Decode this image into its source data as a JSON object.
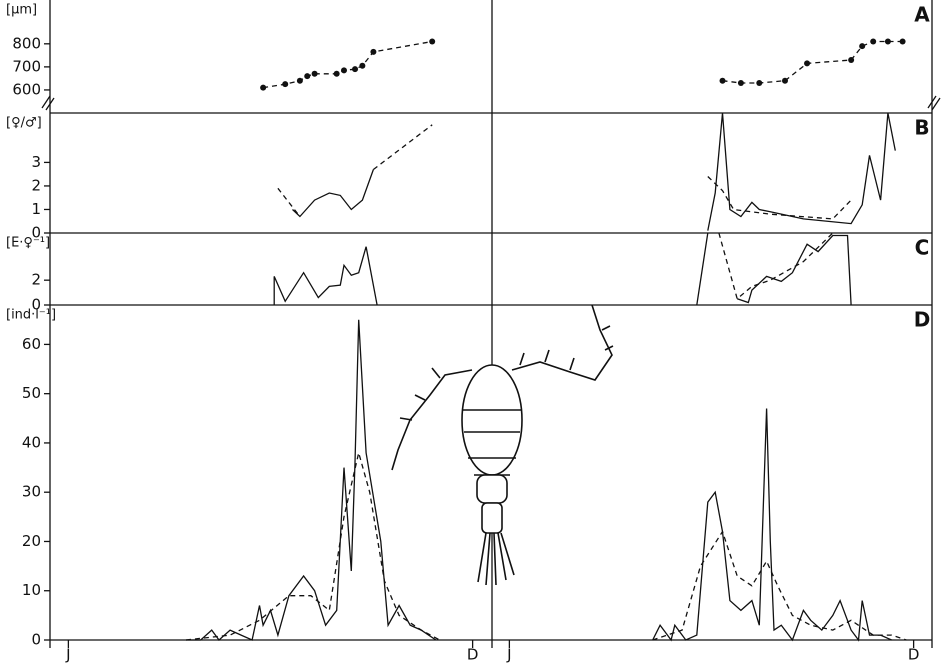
{
  "chart_data": [
    {
      "type": "line",
      "label": "A",
      "ylabel": "[μm]",
      "ylim": [
        500,
        990
      ],
      "yticks": [
        600,
        700,
        800
      ],
      "markers": true,
      "series": [
        {
          "color": "#111",
          "dash": true,
          "x": [
            5.8,
            6.4,
            6.8,
            7.0,
            7.2,
            7.8,
            8.0,
            8.3,
            8.5,
            8.8,
            10.4,
            null,
            18.3,
            18.8,
            19.3,
            20.0,
            20.6,
            21.8,
            22.1,
            22.4,
            22.8,
            23.2
          ],
          "values": [
            610,
            625,
            640,
            660,
            670,
            670,
            685,
            690,
            705,
            765,
            810,
            null,
            640,
            630,
            630,
            640,
            715,
            730,
            790,
            810,
            810,
            810
          ]
        }
      ]
    },
    {
      "type": "line",
      "label": "B",
      "ylabel": "[♀/♂]",
      "ylim": [
        0,
        5.1
      ],
      "yticks": [
        0,
        1,
        2,
        3
      ],
      "series": [
        {
          "color": "#111",
          "dash": false,
          "x": [
            6.6,
            6.8,
            7.2,
            7.6,
            7.9,
            8.2,
            8.5,
            8.8,
            null,
            17.9,
            18.1,
            18.3,
            18.5,
            18.8,
            19.1,
            19.3,
            19.6,
            20.5,
            21.8,
            22.1,
            22.3,
            22.6,
            22.8,
            23.0
          ],
          "values": [
            1.0,
            0.7,
            1.4,
            1.7,
            1.6,
            1.0,
            1.4,
            2.7,
            null,
            0.1,
            1.7,
            5.1,
            1.0,
            0.7,
            1.3,
            1.0,
            0.9,
            0.6,
            0.4,
            1.2,
            3.3,
            1.4,
            5.1,
            3.5
          ]
        },
        {
          "color": "#111",
          "dash": true,
          "x": [
            6.2,
            6.8,
            null,
            8.8,
            10.4,
            null,
            17.9,
            18.3,
            18.6,
            19.6,
            21.3,
            21.8
          ],
          "values": [
            1.9,
            0.7,
            null,
            2.7,
            4.6,
            null,
            2.4,
            1.8,
            1.0,
            0.8,
            0.6,
            1.4
          ]
        }
      ]
    },
    {
      "type": "line",
      "label": "C",
      "ylabel": "[E·♀⁻¹]",
      "ylim": [
        0,
        5.8
      ],
      "yticks": [
        0,
        2
      ],
      "series": [
        {
          "color": "#111",
          "dash": false,
          "x": [
            6.1,
            6.1,
            6.4,
            6.9,
            7.3,
            7.6,
            7.9,
            8.0,
            8.2,
            8.4,
            8.6,
            8.9,
            null,
            17.6,
            17.9,
            null,
            18.7,
            19.0,
            19.1,
            19.5,
            19.9,
            20.2,
            20.6,
            20.9,
            21.3,
            21.7,
            21.8
          ],
          "values": [
            0,
            2.3,
            0.3,
            2.6,
            0.6,
            1.5,
            1.6,
            3.2,
            2.4,
            2.6,
            4.7,
            0,
            null,
            0,
            5.8,
            null,
            0.5,
            0.2,
            1.2,
            2.3,
            1.9,
            2.6,
            4.9,
            4.3,
            5.6,
            5.6,
            0
          ]
        },
        {
          "color": "#111",
          "dash": true,
          "x": [
            18.2,
            18.7,
            19.1,
            19.6,
            20.5,
            21.3
          ],
          "values": [
            5.8,
            0.5,
            1.5,
            2.0,
            3.5,
            5.8
          ]
        }
      ]
    },
    {
      "type": "line",
      "label": "D",
      "ylabel": "[ind·l⁻¹]",
      "ylim": [
        0,
        68
      ],
      "yticks": [
        0,
        10,
        20,
        30,
        40,
        50,
        60
      ],
      "xlim": [
        0,
        24
      ],
      "xticks": [
        {
          "value": 0.5,
          "label": "J"
        },
        {
          "value": 11.5,
          "label": "D"
        },
        {
          "value": 12.5,
          "label": "J"
        },
        {
          "value": 23.5,
          "label": "D"
        }
      ],
      "series": [
        {
          "color": "#111",
          "dash": false,
          "x": [
            3.7,
            4.1,
            4.4,
            4.6,
            4.9,
            5.2,
            5.5,
            5.7,
            5.8,
            6.0,
            6.2,
            6.5,
            6.9,
            7.2,
            7.5,
            7.8,
            8.0,
            8.2,
            8.3,
            8.4,
            8.6,
            9.0,
            9.2,
            9.5,
            9.8,
            10.1,
            10.5,
            null,
            16.4,
            16.6,
            16.9,
            17.0,
            17.3,
            17.6,
            17.9,
            18.1,
            18.3,
            18.5,
            18.8,
            19.1,
            19.3,
            19.5,
            19.6,
            19.7,
            19.9,
            20.2,
            20.5,
            20.7,
            21.0,
            21.3,
            21.5,
            21.8,
            22.0,
            22.1,
            22.3,
            22.6,
            22.9
          ],
          "values": [
            0,
            0,
            2,
            0,
            2,
            1,
            0,
            7,
            3,
            6,
            1,
            9,
            13,
            10,
            3,
            6,
            35,
            14,
            36,
            65,
            38,
            20,
            3,
            7,
            3,
            2,
            0,
            null,
            0,
            3,
            0,
            3,
            0,
            1,
            28,
            30,
            22,
            8,
            6,
            8,
            3,
            47,
            20,
            2,
            3,
            0,
            6,
            4,
            2,
            5,
            8,
            2,
            0,
            8,
            1,
            1,
            0
          ]
        },
        {
          "color": "#111",
          "dash": true,
          "x": [
            3.7,
            4.9,
            5.7,
            6.5,
            7.1,
            7.6,
            8.0,
            8.4,
            8.7,
            9.1,
            9.5,
            10.1,
            10.6,
            null,
            16.4,
            17.2,
            17.7,
            18.3,
            18.7,
            19.1,
            19.5,
            19.8,
            20.2,
            20.7,
            21.3,
            21.8,
            22.4,
            22.9,
            23.3
          ],
          "values": [
            0,
            1,
            4,
            9,
            9,
            6,
            25,
            38,
            30,
            12,
            5,
            2,
            0,
            null,
            0,
            2,
            15,
            22,
            13,
            11,
            16,
            11,
            5,
            3,
            2,
            4,
            1,
            1,
            0
          ]
        }
      ]
    }
  ]
}
